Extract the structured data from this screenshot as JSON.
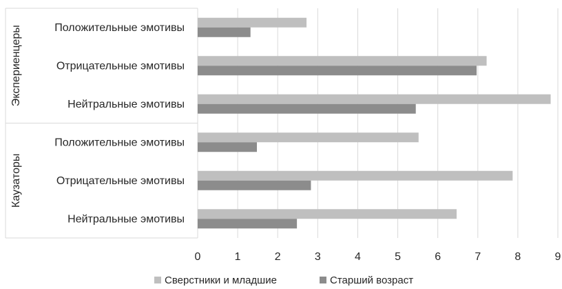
{
  "chart_data": {
    "type": "bar",
    "orientation": "horizontal",
    "xlim": [
      0,
      9
    ],
    "x_ticks": [
      "0",
      "1",
      "2",
      "3",
      "4",
      "5",
      "6",
      "7",
      "8",
      "9"
    ],
    "grid": true,
    "legend_position": "bottom",
    "groups": [
      {
        "name": "Экспериенцеры",
        "categories": [
          "Положительные эмотивы",
          "Отрицательные эмотивы",
          "Нейтральные эмотивы"
        ]
      },
      {
        "name": "Каузаторы",
        "categories": [
          "Положительные эмотивы",
          "Отрицательные эмотивы",
          "Нейтральные эмотивы"
        ]
      }
    ],
    "series": [
      {
        "name": "Сверстники и младшие",
        "color": "#bfbfbf",
        "values": [
          2.72,
          7.22,
          8.82,
          5.52,
          7.87,
          6.47
        ]
      },
      {
        "name": "Старший возраст",
        "color": "#8c8c8c",
        "values": [
          1.32,
          6.97,
          5.45,
          1.48,
          2.83,
          2.48
        ]
      }
    ]
  }
}
